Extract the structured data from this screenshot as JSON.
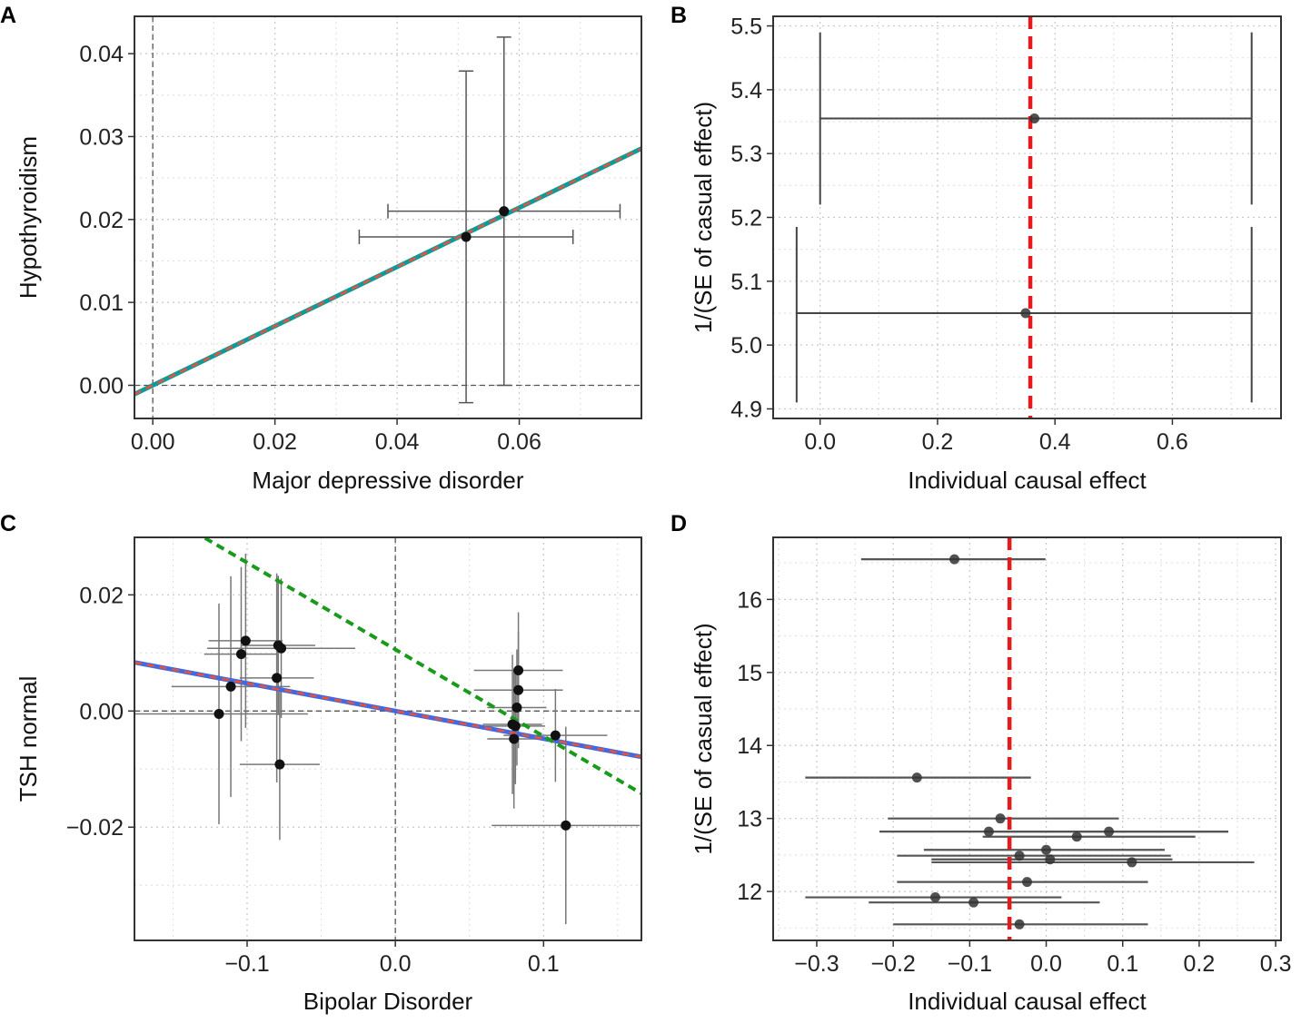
{
  "chart_data": [
    {
      "panel": "A",
      "type": "scatter",
      "xlabel": "Major depressive disorder",
      "ylabel": "Hypothyroidism",
      "xlim": [
        -0.003,
        0.08
      ],
      "ylim": [
        -0.004,
        0.0445
      ],
      "x_ticks": [
        0.0,
        0.02,
        0.04,
        0.06
      ],
      "x_tick_labels": [
        "0.00",
        "0.02",
        "0.04",
        "0.06"
      ],
      "y_ticks": [
        0.0,
        0.01,
        0.02,
        0.03,
        0.04
      ],
      "y_tick_labels": [
        "0.00",
        "0.01",
        "0.02",
        "0.03",
        "0.04"
      ],
      "grid": true,
      "points": [
        {
          "x": 0.0513,
          "y": 0.0179,
          "xerr": 0.0175,
          "yerr": 0.02
        },
        {
          "x": 0.0575,
          "y": 0.021,
          "xerr": 0.019,
          "yerr": 0.021
        }
      ],
      "lines": [
        {
          "name": "fit",
          "color": "#0f9a9a",
          "dashed": false,
          "slope": 0.357,
          "intercept": 0
        },
        {
          "name": "fit-2",
          "color": "#e8513a",
          "dashed": true,
          "slope": 0.357,
          "intercept": 0
        }
      ]
    },
    {
      "panel": "B",
      "type": "forest",
      "xlabel": "Individual causal effect",
      "ylabel": "1/(SE of casual effect)",
      "xlim": [
        -0.08,
        0.785
      ],
      "ylim": [
        4.885,
        5.515
      ],
      "x_ticks": [
        0.0,
        0.2,
        0.4,
        0.6
      ],
      "x_tick_labels": [
        "0.0",
        "0.2",
        "0.4",
        "0.6"
      ],
      "y_ticks": [
        4.9,
        5.0,
        5.1,
        5.2,
        5.3,
        5.4,
        5.5
      ],
      "y_tick_labels": [
        "4.9",
        "5.0",
        "5.1",
        "5.2",
        "5.3",
        "5.4",
        "5.5"
      ],
      "grid": true,
      "points": [
        {
          "x": 0.365,
          "y": 5.355,
          "lo": 0.0,
          "hi": 0.735
        },
        {
          "x": 0.35,
          "y": 5.05,
          "lo": -0.04,
          "hi": 0.735
        }
      ],
      "ref_line": {
        "x": 0.358,
        "color": "#e41a1c"
      }
    },
    {
      "panel": "C",
      "type": "scatter",
      "xlabel": "Bipolar Disorder",
      "ylabel": "TSH normal",
      "xlim": [
        -0.176,
        0.166
      ],
      "ylim": [
        -0.0395,
        0.0299
      ],
      "x_ticks": [
        -0.1,
        0.0,
        0.1
      ],
      "x_tick_labels": [
        "−0.1",
        "0.0",
        "0.1"
      ],
      "y_ticks": [
        -0.02,
        0.0,
        0.02
      ],
      "y_tick_labels": [
        "−0.02",
        "0.00",
        "0.02"
      ],
      "grid": true,
      "points": [
        {
          "x": -0.119,
          "y": -0.0005,
          "xerr": 0.06,
          "yerr": 0.019
        },
        {
          "x": -0.111,
          "y": 0.0042,
          "xerr": 0.04,
          "yerr": 0.019
        },
        {
          "x": -0.104,
          "y": 0.0098,
          "xerr": 0.025,
          "yerr": 0.015
        },
        {
          "x": -0.101,
          "y": 0.0121,
          "xerr": 0.025,
          "yerr": 0.015
        },
        {
          "x": -0.08,
          "y": 0.0057,
          "xerr": 0.025,
          "yerr": 0.018
        },
        {
          "x": -0.079,
          "y": 0.0113,
          "xerr": 0.025,
          "yerr": 0.012
        },
        {
          "x": -0.077,
          "y": 0.0108,
          "xerr": 0.05,
          "yerr": 0.012
        },
        {
          "x": -0.078,
          "y": -0.0092,
          "xerr": 0.027,
          "yerr": 0.013
        },
        {
          "x": 0.079,
          "y": -0.0023,
          "xerr": 0.02,
          "yerr": 0.012
        },
        {
          "x": 0.08,
          "y": -0.0048,
          "xerr": 0.018,
          "yerr": 0.012
        },
        {
          "x": 0.081,
          "y": -0.0026,
          "xerr": 0.02,
          "yerr": 0.01
        },
        {
          "x": 0.082,
          "y": 0.0006,
          "xerr": 0.02,
          "yerr": 0.01
        },
        {
          "x": 0.083,
          "y": 0.0036,
          "xerr": 0.03,
          "yerr": 0.01
        },
        {
          "x": 0.083,
          "y": 0.007,
          "xerr": 0.03,
          "yerr": 0.01
        },
        {
          "x": 0.108,
          "y": -0.0042,
          "xerr": 0.035,
          "yerr": 0.008
        },
        {
          "x": 0.115,
          "y": -0.0197,
          "xerr": 0.05,
          "yerr": 0.017
        }
      ],
      "lines": [
        {
          "name": "fit",
          "color": "#4169e1",
          "dashed": false,
          "slope": -0.0476,
          "intercept": 0
        },
        {
          "name": "fit-2",
          "color": "#e8513a",
          "dashed": true,
          "slope": -0.0476,
          "intercept": 0
        },
        {
          "name": "egger",
          "color": "#1a9a1a",
          "dashed": true,
          "slope": -0.1494,
          "intercept": 0.0106
        }
      ]
    },
    {
      "panel": "D",
      "type": "forest",
      "xlabel": "Individual causal effect",
      "ylabel": "1/(SE of casual effect)",
      "xlim": [
        -0.357,
        0.307
      ],
      "ylim": [
        11.33,
        16.85
      ],
      "x_ticks": [
        -0.3,
        -0.2,
        -0.1,
        0.0,
        0.1,
        0.2,
        0.3
      ],
      "x_tick_labels": [
        "−0.3",
        "−0.2",
        "−0.1",
        "0.0",
        "0.1",
        "0.2",
        "0.3"
      ],
      "y_ticks": [
        12,
        13,
        14,
        15,
        16
      ],
      "y_tick_labels": [
        "12",
        "13",
        "14",
        "15",
        "16"
      ],
      "grid": true,
      "points": [
        {
          "x": -0.12,
          "y": 16.55,
          "lo": -0.242,
          "hi": -0.001
        },
        {
          "x": -0.169,
          "y": 13.56,
          "lo": -0.315,
          "hi": -0.02
        },
        {
          "x": -0.06,
          "y": 13.0,
          "lo": -0.207,
          "hi": 0.095
        },
        {
          "x": -0.075,
          "y": 12.82,
          "lo": -0.218,
          "hi": 0.238
        },
        {
          "x": 0.04,
          "y": 12.75,
          "lo": -0.083,
          "hi": 0.195
        },
        {
          "x": 0.082,
          "y": 12.82,
          "lo": -0.07,
          "hi": 0.238
        },
        {
          "x": -0.035,
          "y": 12.49,
          "lo": -0.195,
          "hi": 0.163
        },
        {
          "x": 0.0,
          "y": 12.57,
          "lo": -0.16,
          "hi": 0.155
        },
        {
          "x": 0.005,
          "y": 12.44,
          "lo": -0.15,
          "hi": 0.165
        },
        {
          "x": 0.112,
          "y": 12.4,
          "lo": -0.15,
          "hi": 0.272
        },
        {
          "x": -0.025,
          "y": 12.13,
          "lo": -0.195,
          "hi": 0.133
        },
        {
          "x": -0.145,
          "y": 11.92,
          "lo": -0.315,
          "hi": 0.02
        },
        {
          "x": -0.095,
          "y": 11.85,
          "lo": -0.232,
          "hi": 0.07
        },
        {
          "x": -0.035,
          "y": 11.55,
          "lo": -0.2,
          "hi": 0.133
        }
      ],
      "ref_line": {
        "x": -0.048,
        "color": "#e41a1c"
      }
    }
  ],
  "panel_labels": [
    "A",
    "B",
    "C",
    "D"
  ]
}
